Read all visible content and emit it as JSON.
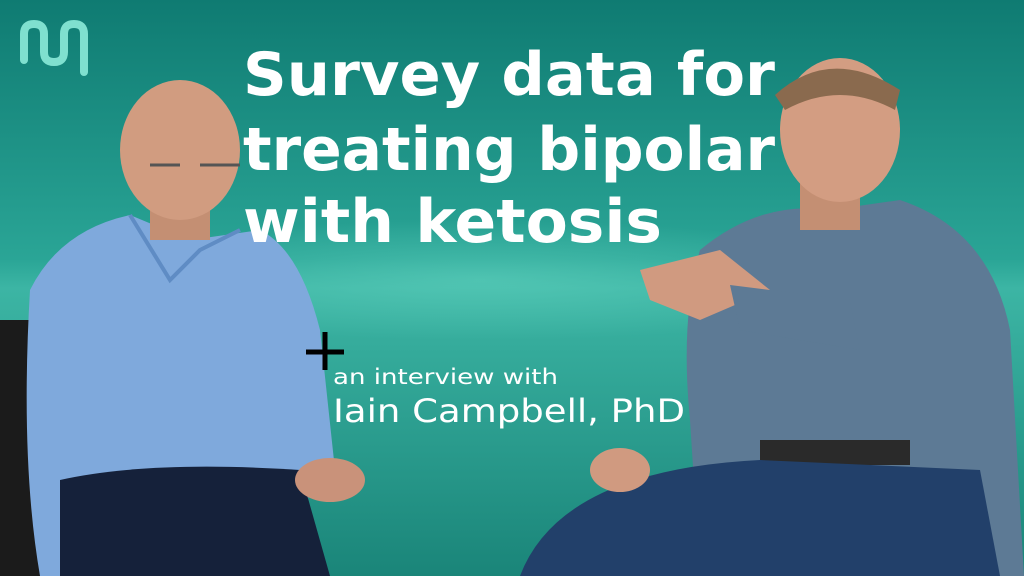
{
  "headline": {
    "lines": [
      "Survey data for",
      "treating bipolar",
      "with ketosis"
    ]
  },
  "subtitle": "an interview with",
  "guest": "Iain Campbell, PhD"
}
